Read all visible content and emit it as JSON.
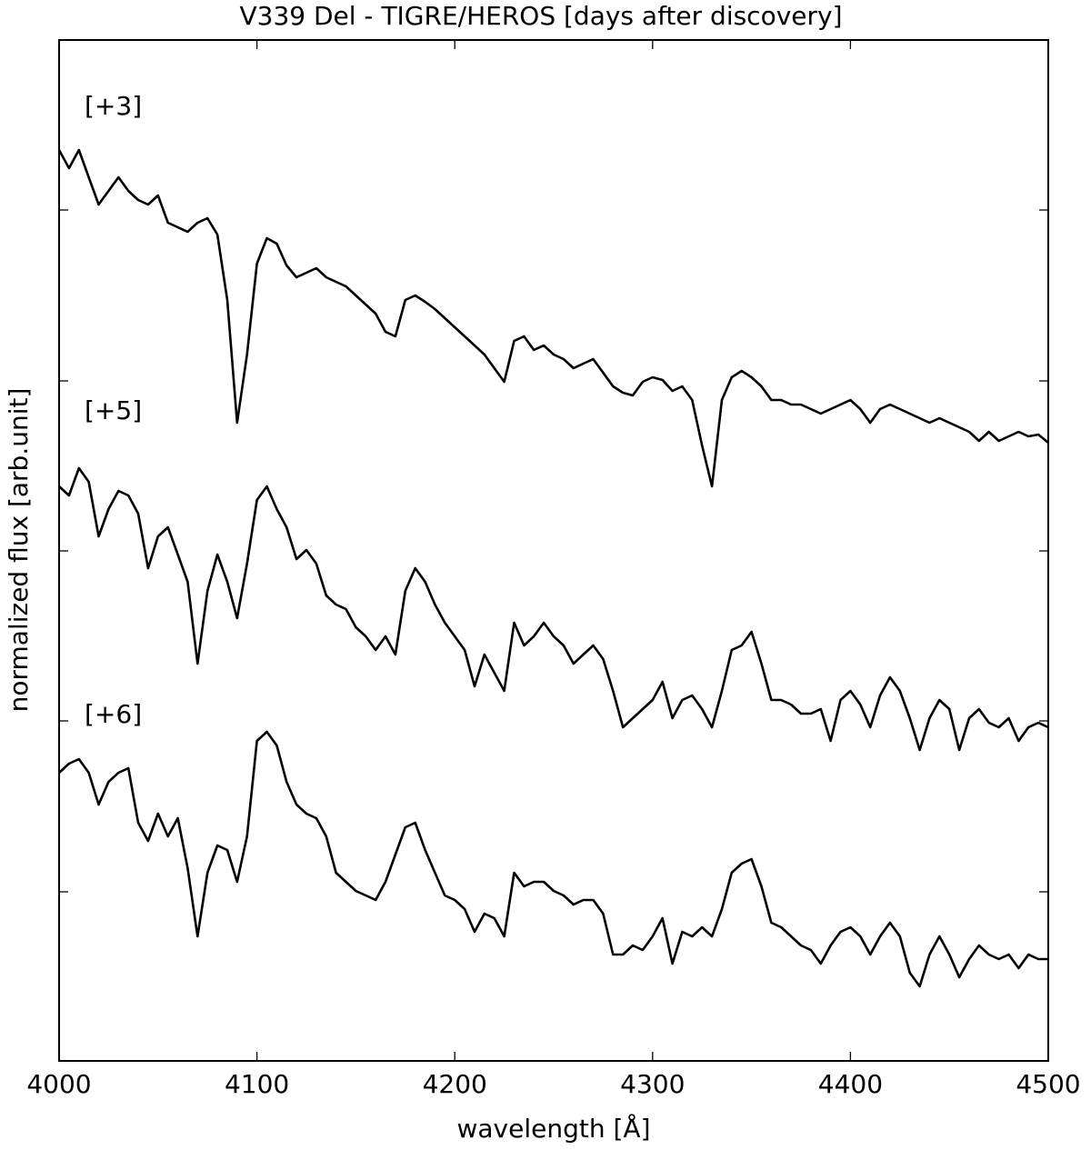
{
  "chart_data": {
    "type": "line",
    "title": "V339 Del - TIGRE/HEROS [days after discovery]",
    "x_label": "wavelength [Å]",
    "y_label": "normalized flux [arb.unit]",
    "x": [
      4000,
      4005,
      4010,
      4015,
      4020,
      4025,
      4030,
      4035,
      4040,
      4045,
      4050,
      4055,
      4060,
      4065,
      4070,
      4075,
      4080,
      4085,
      4090,
      4095,
      4100,
      4105,
      4110,
      4115,
      4120,
      4125,
      4130,
      4135,
      4140,
      4145,
      4150,
      4155,
      4160,
      4165,
      4170,
      4175,
      4180,
      4185,
      4190,
      4195,
      4200,
      4205,
      4210,
      4215,
      4220,
      4225,
      4230,
      4235,
      4240,
      4245,
      4250,
      4255,
      4260,
      4265,
      4270,
      4275,
      4280,
      4285,
      4290,
      4295,
      4300,
      4305,
      4310,
      4315,
      4320,
      4325,
      4330,
      4335,
      4340,
      4345,
      4350,
      4355,
      4360,
      4365,
      4370,
      4375,
      4380,
      4385,
      4390,
      4395,
      4400,
      4405,
      4410,
      4415,
      4420,
      4425,
      4430,
      4435,
      4440,
      4445,
      4450,
      4455,
      4460,
      4465,
      4470,
      4475,
      4480,
      4485,
      4490,
      4495,
      4500
    ],
    "series": [
      {
        "name": "[+3]",
        "color": "#000000",
        "values": [
          1002,
          982,
          1002,
          972,
          942,
          957,
          972,
          957,
          947,
          942,
          952,
          922,
          917,
          912,
          922,
          927,
          909,
          837,
          702,
          777,
          877,
          905,
          899,
          875,
          862,
          867,
          872,
          862,
          857,
          852,
          842,
          832,
          822,
          802,
          797,
          837,
          842,
          835,
          827,
          817,
          807,
          797,
          787,
          777,
          762,
          747,
          792,
          797,
          782,
          787,
          777,
          772,
          762,
          767,
          772,
          757,
          742,
          735,
          732,
          747,
          752,
          749,
          737,
          742,
          727,
          677,
          632,
          727,
          752,
          759,
          752,
          742,
          727,
          727,
          722,
          722,
          717,
          712,
          717,
          722,
          727,
          717,
          702,
          717,
          722,
          717,
          712,
          707,
          702,
          707,
          702,
          697,
          692,
          682,
          692,
          682,
          687,
          692,
          687,
          689,
          680
        ]
      },
      {
        "name": "[+5]",
        "color": "#000000",
        "values": [
          632,
          622,
          652,
          637,
          577,
          607,
          627,
          622,
          602,
          542,
          577,
          587,
          557,
          527,
          437,
          517,
          557,
          527,
          487,
          547,
          617,
          632,
          607,
          587,
          552,
          562,
          547,
          512,
          502,
          497,
          477,
          467,
          452,
          467,
          447,
          517,
          542,
          527,
          502,
          482,
          467,
          452,
          412,
          447,
          427,
          407,
          482,
          457,
          467,
          482,
          467,
          457,
          437,
          447,
          457,
          442,
          407,
          367,
          377,
          387,
          397,
          417,
          377,
          397,
          402,
          387,
          367,
          407,
          452,
          457,
          472,
          437,
          397,
          397,
          392,
          382,
          382,
          387,
          352,
          397,
          407,
          392,
          367,
          402,
          422,
          407,
          377,
          342,
          377,
          397,
          387,
          342,
          377,
          387,
          372,
          367,
          377,
          352,
          367,
          372,
          367
        ]
      },
      {
        "name": "[+6]",
        "color": "#000000",
        "values": [
          317,
          327,
          332,
          317,
          282,
          307,
          317,
          322,
          262,
          242,
          272,
          247,
          267,
          212,
          137,
          207,
          237,
          232,
          197,
          247,
          352,
          362,
          347,
          307,
          282,
          272,
          267,
          247,
          207,
          197,
          187,
          182,
          177,
          197,
          227,
          257,
          262,
          232,
          207,
          182,
          177,
          167,
          142,
          162,
          157,
          137,
          207,
          192,
          197,
          197,
          187,
          182,
          172,
          177,
          177,
          162,
          117,
          117,
          127,
          122,
          137,
          157,
          107,
          142,
          137,
          147,
          137,
          167,
          207,
          217,
          222,
          192,
          152,
          147,
          137,
          127,
          122,
          107,
          127,
          142,
          147,
          137,
          117,
          137,
          152,
          137,
          97,
          82,
          117,
          137,
          117,
          92,
          112,
          127,
          117,
          112,
          117,
          102,
          117,
          112,
          112
        ]
      }
    ],
    "xlim": [
      4000,
      4500
    ],
    "xticks": [
      4000,
      4100,
      4200,
      4300,
      4400,
      4500
    ],
    "ylim": [
      0,
      1123
    ],
    "yticks": [
      186,
      374,
      561,
      748,
      936
    ]
  }
}
